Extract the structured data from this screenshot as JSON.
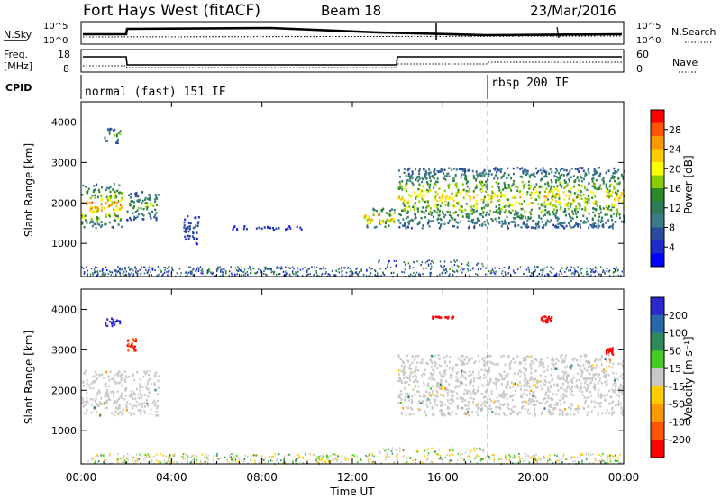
{
  "header": {
    "station": "Fort Hays West (fitACF)",
    "beam": "Beam 18",
    "date": "23/Mar/2016"
  },
  "noise_panel": {
    "left_label": "N.Sky",
    "right_label": "N.Search",
    "left_ticks": [
      "10^5",
      "10^0"
    ],
    "right_ticks": [
      "10^5",
      "10^0"
    ]
  },
  "freq_panel": {
    "left_label_1": "Freq.",
    "left_label_2": "[MHz]",
    "left_ticks": [
      "18",
      "8"
    ],
    "right_ticks": [
      "60",
      "0"
    ],
    "right_label": "Nave"
  },
  "cpid": {
    "label": "CPID",
    "programs": [
      {
        "name": "normal (fast) 151 IF",
        "start_hour": 0
      },
      {
        "name": "rbsp 200 IF",
        "start_hour": 18
      }
    ]
  },
  "power_scale": {
    "title": "Power [dB]",
    "ticks": [
      "28",
      "24",
      "20",
      "16",
      "12",
      "8",
      "4"
    ],
    "colors": [
      "#ff0000",
      "#ff5500",
      "#ff9900",
      "#ffcc00",
      "#ffff00",
      "#88cc00",
      "#2a8a2a",
      "#2e7a5a",
      "#3a7a8a",
      "#2a4aa0",
      "#1e2ccc",
      "#0000ff"
    ]
  },
  "velocity_scale": {
    "title": "Velocity [m s⁻¹]",
    "ticks": [
      "200",
      "100",
      "50",
      "15",
      "-15",
      "-50",
      "-100",
      "-200"
    ],
    "colors": [
      "#2a2acc",
      "#2a66aa",
      "#2e8a5a",
      "#44cc22",
      "#c8c8c8",
      "#ffcc00",
      "#ff9900",
      "#ff5500",
      "#ff0000"
    ]
  },
  "chart_data": [
    {
      "type": "heatmap",
      "parameter": "power",
      "ylabel": "Slant Range [km]",
      "xlim": [
        0,
        24
      ],
      "ylim": [
        180,
        4500
      ],
      "yticks": [
        1000,
        2000,
        3000,
        4000
      ],
      "zunits": "dB",
      "zlim": [
        0,
        30
      ],
      "regions": [
        {
          "t0": 0,
          "t1": 1.8,
          "r0": 1400,
          "r1": 2500,
          "peak": 24
        },
        {
          "t0": 1.0,
          "t1": 1.7,
          "r0": 3500,
          "r1": 3900,
          "peak": 16
        },
        {
          "t0": 2.0,
          "t1": 3.4,
          "r0": 1600,
          "r1": 2300,
          "peak": 16
        },
        {
          "t0": 4.5,
          "t1": 5.2,
          "r0": 1000,
          "r1": 1700,
          "peak": 8
        },
        {
          "t0": 6.5,
          "t1": 9.8,
          "r0": 1350,
          "r1": 1450,
          "peak": 6
        },
        {
          "t0": 12.5,
          "t1": 13.9,
          "r0": 1400,
          "r1": 1900,
          "peak": 24
        },
        {
          "t0": 14.0,
          "t1": 24,
          "r0": 1400,
          "r1": 2900,
          "peak": 20
        }
      ]
    },
    {
      "type": "heatmap",
      "parameter": "velocity",
      "ylabel": "Slant Range [km]",
      "xlabel": "Time UT",
      "xlim": [
        0,
        24
      ],
      "ylim": [
        180,
        4500
      ],
      "yticks": [
        1000,
        2000,
        3000,
        4000
      ],
      "xticks": [
        "00:00",
        "04:00",
        "08:00",
        "12:00",
        "16:00",
        "20:00",
        "00:00"
      ],
      "zunits": "m/s",
      "zlim": [
        -200,
        200
      ],
      "regions": [
        {
          "t0": 0,
          "t1": 3.4,
          "r0": 1400,
          "r1": 2500,
          "v": 0
        },
        {
          "t0": 1.0,
          "t1": 1.7,
          "r0": 3600,
          "r1": 3800,
          "v": 200
        },
        {
          "t0": 2.0,
          "t1": 2.4,
          "r0": 3000,
          "r1": 3300,
          "v": -150
        },
        {
          "t0": 14.0,
          "t1": 24,
          "r0": 1400,
          "r1": 2900,
          "v": 0
        },
        {
          "t0": 15.5,
          "t1": 16.5,
          "r0": 3800,
          "r1": 3850,
          "v": -200
        },
        {
          "t0": 20.3,
          "t1": 20.8,
          "r0": 3700,
          "r1": 3850,
          "v": -200
        },
        {
          "t0": 23.2,
          "t1": 23.5,
          "r0": 2900,
          "r1": 3100,
          "v": -200
        }
      ]
    }
  ]
}
